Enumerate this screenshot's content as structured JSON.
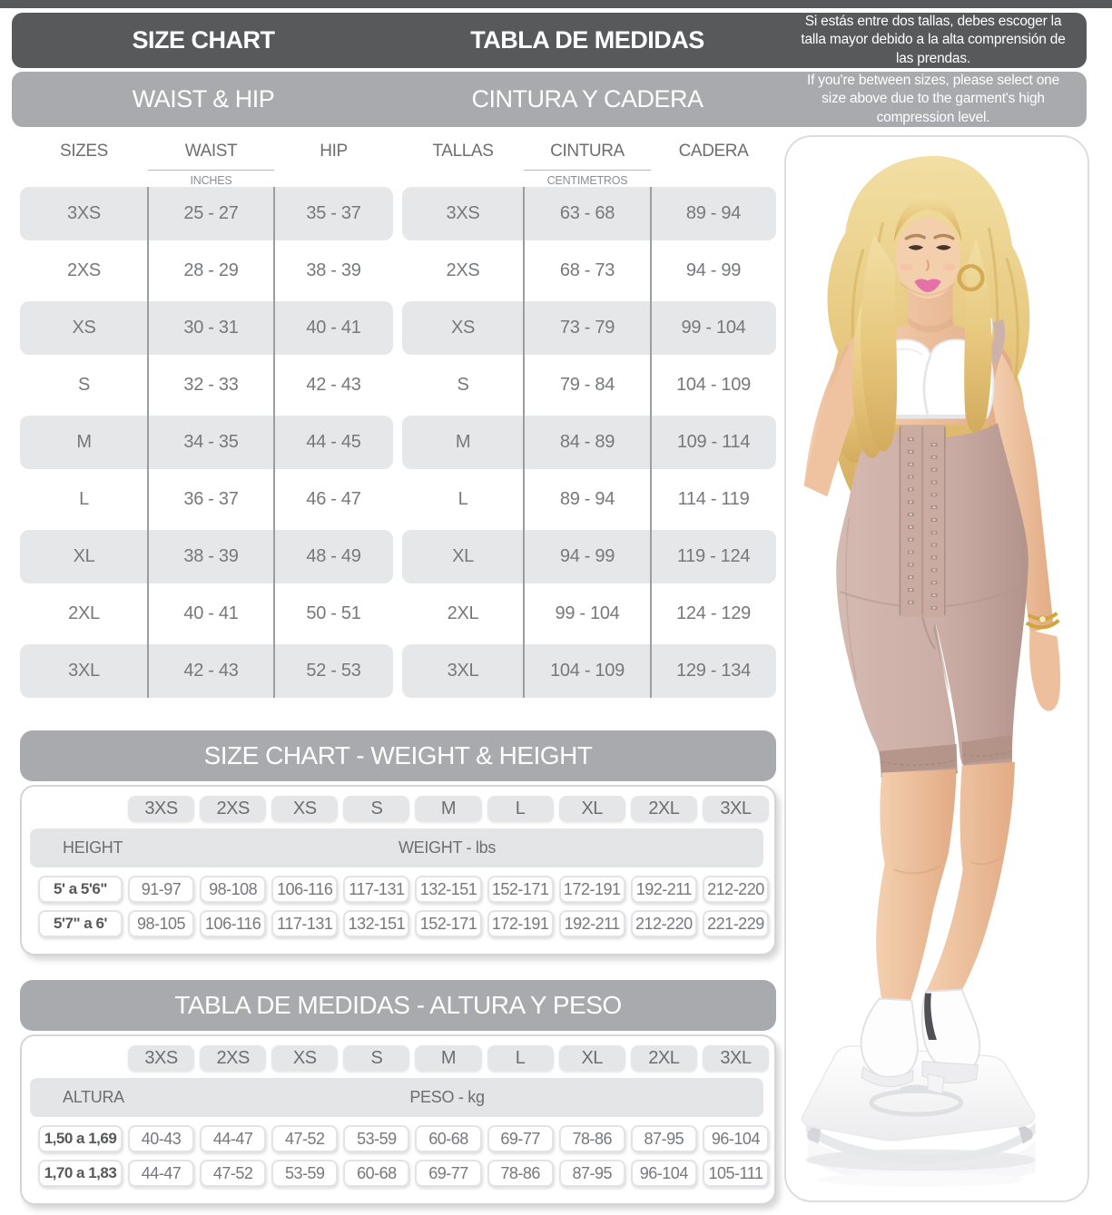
{
  "banner": {
    "size_chart_en": "SIZE CHART",
    "size_chart_es": "TABLA DE MEDIDAS",
    "note_es": "Si estás entre dos tallas, debes escoger la talla mayor debido a la alta comprensión de las prendas.",
    "subtitle_en": "WAIST & HIP",
    "subtitle_es": "CINTURA Y CADERA",
    "note_en": "If you're between sizes, please select one size above due to the garment's high compression level."
  },
  "waist_hip": {
    "inches": {
      "col_size": "SIZES",
      "col_waist": "WAIST",
      "col_hip": "HIP",
      "unit": "INCHES",
      "rows": [
        [
          "3XS",
          "25 - 27",
          "35 - 37"
        ],
        [
          "2XS",
          "28 - 29",
          "38 - 39"
        ],
        [
          "XS",
          "30 - 31",
          "40 - 41"
        ],
        [
          "S",
          "32 - 33",
          "42 - 43"
        ],
        [
          "M",
          "34 - 35",
          "44 - 45"
        ],
        [
          "L",
          "36 - 37",
          "46 - 47"
        ],
        [
          "XL",
          "38 - 39",
          "48 - 49"
        ],
        [
          "2XL",
          "40 - 41",
          "50 - 51"
        ],
        [
          "3XL",
          "42 - 43",
          "52 - 53"
        ]
      ]
    },
    "centimeters": {
      "col_size": "TALLAS",
      "col_waist": "CINTURA",
      "col_hip": "CADERA",
      "unit": "CENTIMETROS",
      "rows": [
        [
          "3XS",
          "63 - 68",
          "89 - 94"
        ],
        [
          "2XS",
          "68 - 73",
          "94 - 99"
        ],
        [
          "XS",
          "73 - 79",
          "99 - 104"
        ],
        [
          "S",
          "79 - 84",
          "104 - 109"
        ],
        [
          "M",
          "84 - 89",
          "109 - 114"
        ],
        [
          "L",
          "89 - 94",
          "114 - 119"
        ],
        [
          "XL",
          "94 - 99",
          "119 - 124"
        ],
        [
          "2XL",
          "99 - 104",
          "124 - 129"
        ],
        [
          "3XL",
          "104 - 109",
          "129 - 134"
        ]
      ]
    }
  },
  "weight_height": {
    "title": "SIZE CHART - WEIGHT & HEIGHT",
    "sizes": [
      "3XS",
      "2XS",
      "XS",
      "S",
      "M",
      "L",
      "XL",
      "2XL",
      "3XL"
    ],
    "row_header": "HEIGHT",
    "values_header": "WEIGHT - lbs",
    "rows": [
      {
        "label": "5' a 5'6\"",
        "values": [
          "91-97",
          "98-108",
          "106-116",
          "117-131",
          "132-151",
          "152-171",
          "172-191",
          "192-211",
          "212-220"
        ]
      },
      {
        "label": "5'7\" a 6'",
        "values": [
          "98-105",
          "106-116",
          "117-131",
          "132-151",
          "152-171",
          "172-191",
          "192-211",
          "212-220",
          "221-229"
        ]
      }
    ]
  },
  "altura_peso": {
    "title": "TABLA DE MEDIDAS - ALTURA Y PESO",
    "sizes": [
      "3XS",
      "2XS",
      "XS",
      "S",
      "M",
      "L",
      "XL",
      "2XL",
      "3XL"
    ],
    "row_header": "ALTURA",
    "values_header": "PESO - kg",
    "rows": [
      {
        "label": "1,50 a 1,69",
        "values": [
          "40-43",
          "44-47",
          "47-52",
          "53-59",
          "60-68",
          "69-77",
          "78-86",
          "87-95",
          "96-104"
        ]
      },
      {
        "label": "1,70 a 1,83",
        "values": [
          "44-47",
          "47-52",
          "53-59",
          "60-68",
          "69-77",
          "78-86",
          "87-95",
          "96-104",
          "105-111"
        ]
      }
    ]
  },
  "colors": {
    "header_dark": "#58595b",
    "header_gray": "#a8aaad",
    "row_shade": "#e6e7e8",
    "text_gray": "#77787b",
    "label_dark": "#57585a",
    "shapewear": "#cbaea6",
    "accent_gold": "#d3ab54"
  }
}
